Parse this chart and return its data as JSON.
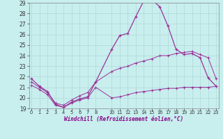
{
  "xlabel": "Windchill (Refroidissement éolien,°C)",
  "background_color": "#c8eeee",
  "grid_color": "#b0d8d8",
  "line_color": "#993399",
  "x": [
    0,
    1,
    2,
    3,
    4,
    5,
    6,
    7,
    8,
    10,
    11,
    12,
    13,
    14,
    15,
    16,
    17,
    18,
    19,
    20,
    21,
    22,
    23
  ],
  "line1": [
    21.8,
    21.1,
    20.6,
    19.4,
    19.1,
    19.6,
    19.9,
    20.1,
    21.5,
    24.6,
    25.9,
    26.1,
    27.7,
    29.2,
    29.3,
    28.6,
    26.8,
    24.6,
    24.1,
    24.2,
    23.8,
    21.9,
    21.1
  ],
  "line2": [
    21.5,
    21.0,
    20.5,
    19.5,
    19.3,
    19.8,
    20.2,
    20.5,
    21.5,
    22.5,
    22.8,
    23.0,
    23.3,
    23.5,
    23.7,
    24.0,
    24.0,
    24.2,
    24.3,
    24.4,
    24.1,
    23.8,
    21.8
  ],
  "line3": [
    21.2,
    20.8,
    20.3,
    19.3,
    19.1,
    19.5,
    19.8,
    20.0,
    21.0,
    20.0,
    20.1,
    20.3,
    20.5,
    20.6,
    20.7,
    20.8,
    20.9,
    20.9,
    21.0,
    21.0,
    21.0,
    21.0,
    21.1
  ],
  "ylim": [
    19,
    29
  ],
  "yticks": [
    19,
    20,
    21,
    22,
    23,
    24,
    25,
    26,
    27,
    28,
    29
  ],
  "xtick_positions": [
    0,
    1,
    2,
    3,
    4,
    5,
    6,
    7,
    8,
    10,
    11,
    12,
    13,
    14,
    15,
    16,
    17,
    18,
    19,
    20,
    21,
    22,
    23
  ],
  "xtick_labels": [
    "0",
    "1",
    "2",
    "3",
    "4",
    "5",
    "6",
    "7",
    "8",
    "10",
    "11",
    "12",
    "13",
    "14",
    "15",
    "16",
    "17",
    "18",
    "19",
    "20",
    "21",
    "22",
    "23"
  ],
  "xlim": [
    -0.3,
    23.3
  ],
  "figsize": [
    3.2,
    2.0
  ],
  "dpi": 100
}
